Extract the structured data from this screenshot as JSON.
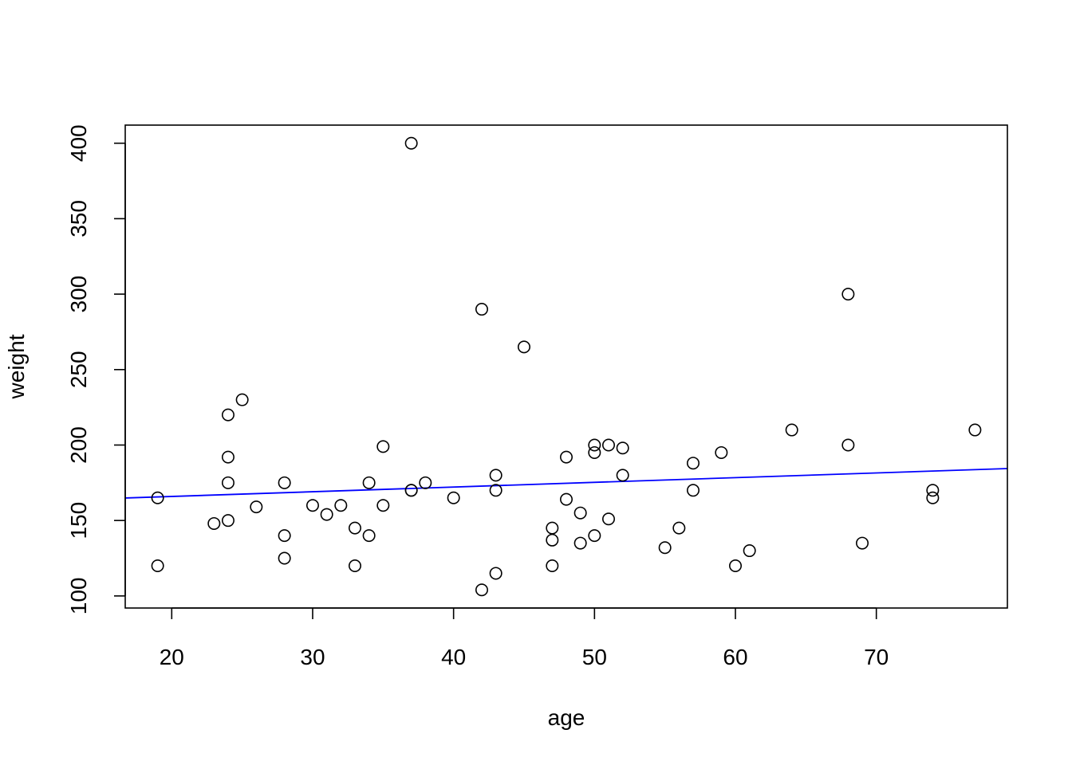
{
  "chart_data": {
    "type": "scatter",
    "xlabel": "age",
    "ylabel": "weight",
    "xlim": [
      16.7,
      79.3
    ],
    "ylim": [
      92,
      412
    ],
    "x_ticks": [
      20,
      30,
      40,
      50,
      60,
      70
    ],
    "y_ticks": [
      100,
      150,
      200,
      250,
      300,
      350,
      400
    ],
    "grid": false,
    "points": [
      {
        "x": 19,
        "y": 165
      },
      {
        "x": 19,
        "y": 120
      },
      {
        "x": 23,
        "y": 148
      },
      {
        "x": 24,
        "y": 220
      },
      {
        "x": 24,
        "y": 192
      },
      {
        "x": 24,
        "y": 175
      },
      {
        "x": 24,
        "y": 150
      },
      {
        "x": 25,
        "y": 230
      },
      {
        "x": 26,
        "y": 159
      },
      {
        "x": 28,
        "y": 175
      },
      {
        "x": 28,
        "y": 140
      },
      {
        "x": 28,
        "y": 125
      },
      {
        "x": 30,
        "y": 160
      },
      {
        "x": 31,
        "y": 154
      },
      {
        "x": 32,
        "y": 160
      },
      {
        "x": 33,
        "y": 145
      },
      {
        "x": 33,
        "y": 120
      },
      {
        "x": 34,
        "y": 175
      },
      {
        "x": 34,
        "y": 140
      },
      {
        "x": 35,
        "y": 199
      },
      {
        "x": 35,
        "y": 160
      },
      {
        "x": 37,
        "y": 400
      },
      {
        "x": 37,
        "y": 170
      },
      {
        "x": 37,
        "y": 170
      },
      {
        "x": 38,
        "y": 175
      },
      {
        "x": 40,
        "y": 165
      },
      {
        "x": 42,
        "y": 290
      },
      {
        "x": 42,
        "y": 104
      },
      {
        "x": 43,
        "y": 180
      },
      {
        "x": 43,
        "y": 170
      },
      {
        "x": 43,
        "y": 115
      },
      {
        "x": 45,
        "y": 265
      },
      {
        "x": 47,
        "y": 145
      },
      {
        "x": 47,
        "y": 137
      },
      {
        "x": 47,
        "y": 120
      },
      {
        "x": 48,
        "y": 192
      },
      {
        "x": 48,
        "y": 164
      },
      {
        "x": 49,
        "y": 155
      },
      {
        "x": 49,
        "y": 135
      },
      {
        "x": 50,
        "y": 200
      },
      {
        "x": 50,
        "y": 195
      },
      {
        "x": 50,
        "y": 140
      },
      {
        "x": 51,
        "y": 200
      },
      {
        "x": 51,
        "y": 151
      },
      {
        "x": 52,
        "y": 198
      },
      {
        "x": 52,
        "y": 180
      },
      {
        "x": 55,
        "y": 132
      },
      {
        "x": 56,
        "y": 145
      },
      {
        "x": 57,
        "y": 188
      },
      {
        "x": 57,
        "y": 170
      },
      {
        "x": 59,
        "y": 195
      },
      {
        "x": 60,
        "y": 120
      },
      {
        "x": 61,
        "y": 130
      },
      {
        "x": 64,
        "y": 210
      },
      {
        "x": 68,
        "y": 300
      },
      {
        "x": 68,
        "y": 200
      },
      {
        "x": 69,
        "y": 135
      },
      {
        "x": 74,
        "y": 170
      },
      {
        "x": 74,
        "y": 165
      },
      {
        "x": 77,
        "y": 210
      }
    ],
    "fit_line": {
      "color": "#0000ff",
      "intercept": 159.7,
      "slope": 0.3115
    },
    "point_color": "#000000"
  }
}
